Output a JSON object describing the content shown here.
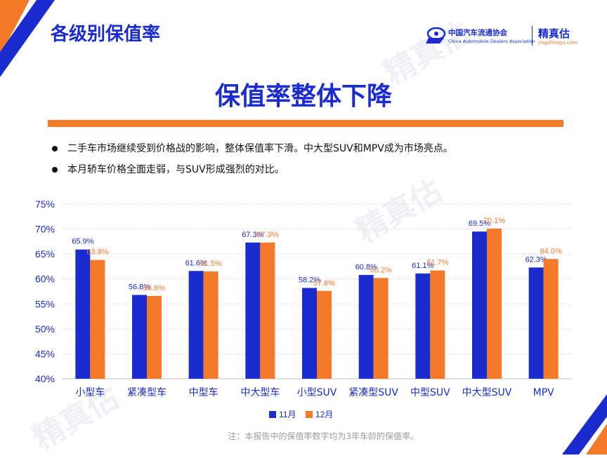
{
  "header": {
    "title": "各级别保值率",
    "logo_cn": "中国汽车流通协会",
    "logo_en": "China Automobile Dealers Association",
    "brand_name": "精真估",
    "brand_url": "jingzhengu.com"
  },
  "slide": {
    "title": "保值率整体下降",
    "bullets": [
      "二手车市场继续受到价格战的影响，整体保值率下滑。中大型SUV和MPV成为市场亮点。",
      "本月轿车价格全面走弱，与SUV形成强烈的对比。"
    ],
    "footnote": "注：本报告中的保值率数字均为3年车龄的保值率。"
  },
  "colors": {
    "series_nov": "#1a2bd0",
    "series_dec": "#f47a2a",
    "accent_blue": "#1a2bd0",
    "accent_orange": "#f47a2a"
  },
  "chart_data": {
    "type": "bar",
    "categories": [
      "小型车",
      "紧凑型车",
      "中型车",
      "中大型车",
      "小型SUV",
      "紧凑型SUV",
      "中型SUV",
      "中大型SUV",
      "MPV"
    ],
    "series": [
      {
        "name": "11月",
        "values": [
          65.9,
          56.8,
          61.6,
          67.3,
          58.2,
          60.8,
          61.1,
          69.5,
          62.3
        ],
        "labels": [
          "65.9%",
          "56.8%",
          "61.6%",
          "67.3%",
          "58.2%",
          "60.8%",
          "61.1%",
          "69.5%",
          "62.3%"
        ]
      },
      {
        "name": "12月",
        "values": [
          63.8,
          56.6,
          61.5,
          67.3,
          57.6,
          60.2,
          61.7,
          70.1,
          64.0
        ],
        "labels": [
          "63.8%",
          "56.6%",
          "61.5%",
          "67.3%",
          "57.6%",
          "60.2%",
          "61.7%",
          "70.1%",
          "64.0%"
        ]
      }
    ],
    "ylim": [
      40,
      75
    ],
    "yticks": [
      "40%",
      "45%",
      "50%",
      "55%",
      "60%",
      "65%",
      "70%",
      "75%"
    ],
    "ytick_values": [
      40,
      45,
      50,
      55,
      60,
      65,
      70,
      75
    ],
    "grid": true,
    "legend": "bottom"
  }
}
